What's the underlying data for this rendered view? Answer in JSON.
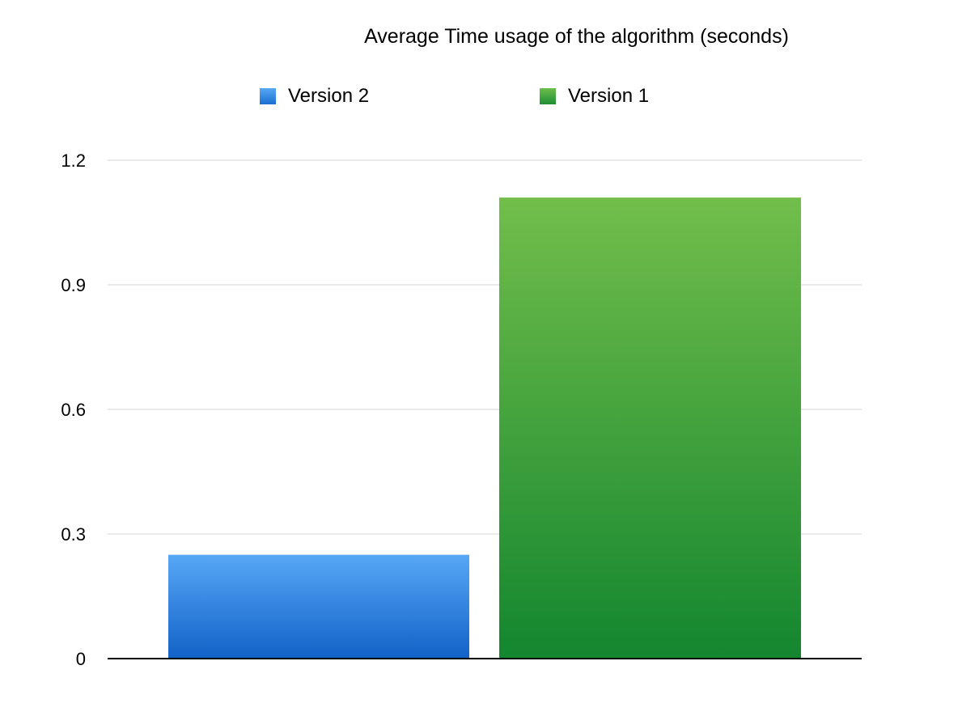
{
  "chart_data": {
    "type": "bar",
    "title": "Average Time usage of the algorithm (seconds)",
    "xlabel": "",
    "ylabel": "",
    "ylim": [
      0,
      1.2
    ],
    "yticks": [
      0,
      0.3,
      0.6,
      0.9,
      1.2
    ],
    "ytick_labels": [
      "0",
      "0.3",
      "0.6",
      "0.9",
      "1.2"
    ],
    "grid": true,
    "legend_position": "top",
    "series": [
      {
        "name": "Version 2",
        "values": [
          0.25
        ],
        "color": "#3d8fe0"
      },
      {
        "name": "Version 1",
        "values": [
          1.11
        ],
        "color": "#3a9e3a"
      }
    ]
  }
}
